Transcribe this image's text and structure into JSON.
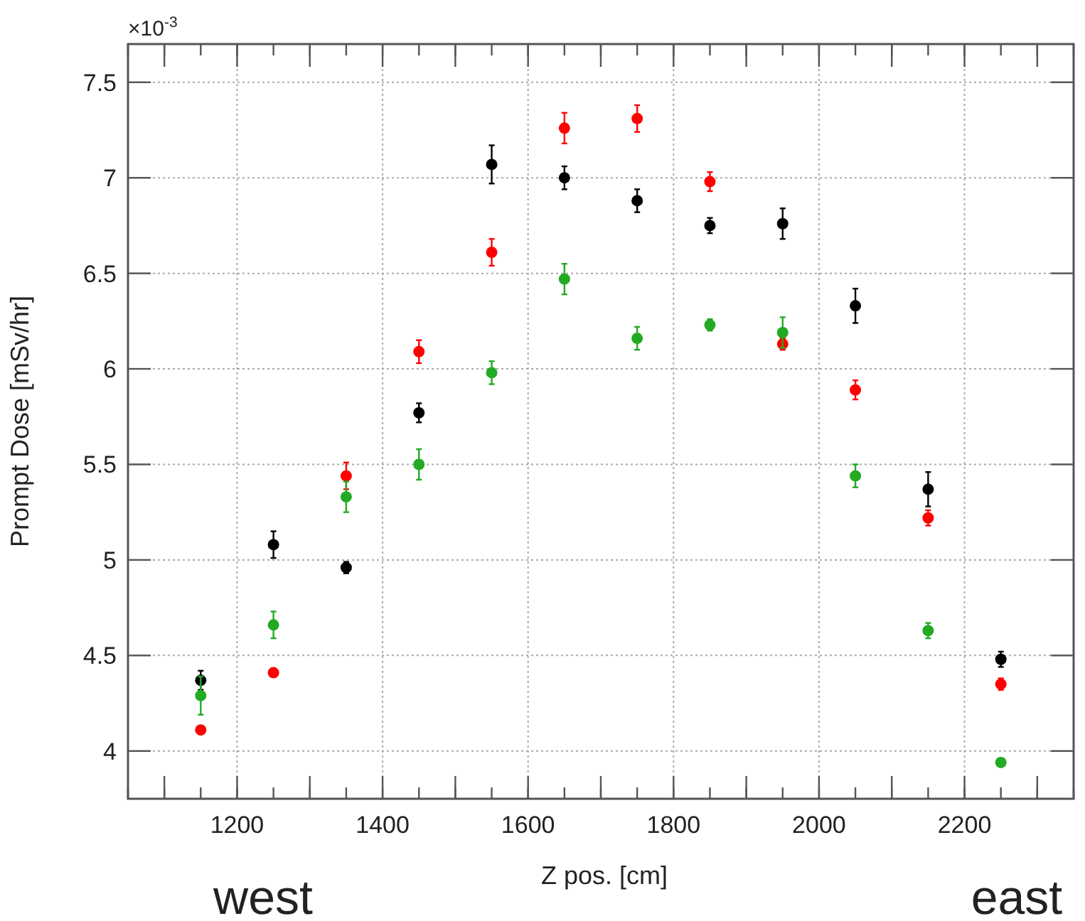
{
  "chart_data": {
    "type": "scatter",
    "xlabel": "Z pos. [cm]",
    "ylabel": "Prompt Dose [mSv/hr]",
    "x": [
      1150,
      1250,
      1350,
      1450,
      1550,
      1650,
      1750,
      1850,
      1950,
      2050,
      2150,
      2250
    ],
    "series": [
      {
        "color": "#000000",
        "values": [
          4.37,
          5.08,
          4.96,
          5.77,
          7.07,
          7.0,
          6.88,
          6.75,
          6.76,
          6.33,
          5.37,
          4.48
        ],
        "errors": [
          0.05,
          0.07,
          0.03,
          0.05,
          0.1,
          0.06,
          0.06,
          0.04,
          0.08,
          0.09,
          0.09,
          0.04
        ]
      },
      {
        "color": "#ff0000",
        "values": [
          4.11,
          4.41,
          5.44,
          6.09,
          6.61,
          7.26,
          7.31,
          6.98,
          6.13,
          5.89,
          5.22,
          4.35
        ],
        "errors": [
          0.02,
          0.02,
          0.07,
          0.06,
          0.07,
          0.08,
          0.07,
          0.05,
          0.03,
          0.05,
          0.04,
          0.03
        ]
      },
      {
        "color": "#22aa22",
        "values": [
          4.29,
          4.66,
          5.33,
          5.5,
          5.98,
          6.47,
          6.16,
          6.23,
          6.19,
          5.44,
          4.63,
          3.94
        ],
        "errors": [
          0.1,
          0.07,
          0.08,
          0.08,
          0.06,
          0.08,
          0.06,
          0.03,
          0.08,
          0.06,
          0.04,
          0.01
        ]
      }
    ],
    "xlim": [
      1050,
      2350
    ],
    "xticks": [
      {
        "value": 1100,
        "label": null
      },
      1200,
      {
        "value": 1300,
        "label": null
      },
      1400,
      {
        "value": 1500,
        "label": null
      },
      1600,
      {
        "value": 1700,
        "label": null
      },
      1800,
      {
        "value": 1900,
        "label": null
      },
      2000,
      {
        "value": 2100,
        "label": null
      },
      2200,
      {
        "value": 2300,
        "label": null
      }
    ],
    "ylim": [
      3.75,
      7.7
    ],
    "yticks": [
      4,
      4.5,
      5,
      5.5,
      6,
      6.5,
      7,
      7.5
    ],
    "grid": true,
    "marker": "circle",
    "annotations": [
      "×10$^{-3}$",
      "west",
      "east"
    ]
  }
}
